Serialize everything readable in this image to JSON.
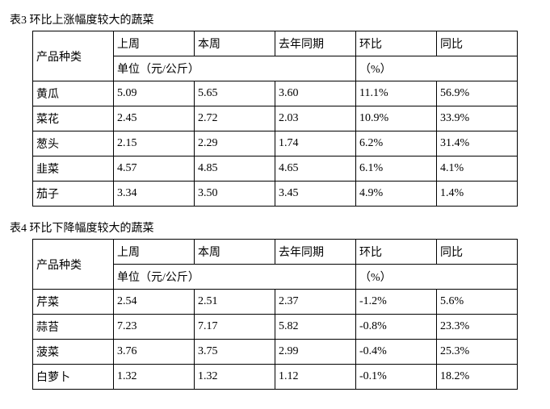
{
  "table3": {
    "caption": "表3 环比上涨幅度较大的蔬菜",
    "header": {
      "product": "产品种类",
      "last_week": "上周",
      "this_week": "本周",
      "last_year": "去年同期",
      "mom": "环比",
      "yoy": "同比",
      "unit_price": "单位（元/公斤）",
      "percent": "（%）"
    },
    "rows": [
      {
        "name": "黄瓜",
        "last_week": "5.09",
        "this_week": "5.65",
        "last_year": "3.60",
        "mom": "11.1%",
        "yoy": "56.9%"
      },
      {
        "name": "菜花",
        "last_week": "2.45",
        "this_week": "2.72",
        "last_year": "2.03",
        "mom": "10.9%",
        "yoy": "33.9%"
      },
      {
        "name": "葱头",
        "last_week": "2.15",
        "this_week": "2.29",
        "last_year": "1.74",
        "mom": "6.2%",
        "yoy": "31.4%"
      },
      {
        "name": "韭菜",
        "last_week": "4.57",
        "this_week": "4.85",
        "last_year": "4.65",
        "mom": "6.1%",
        "yoy": "4.1%"
      },
      {
        "name": "茄子",
        "last_week": "3.34",
        "this_week": "3.50",
        "last_year": "3.45",
        "mom": "4.9%",
        "yoy": "1.4%"
      }
    ]
  },
  "table4": {
    "caption": "表4 环比下降幅度较大的蔬菜",
    "header": {
      "product": "产品种类",
      "last_week": "上周",
      "this_week": "本周",
      "last_year": "去年同期",
      "mom": "环比",
      "yoy": "同比",
      "unit_price": "单位（元/公斤）",
      "percent": "（%）"
    },
    "rows": [
      {
        "name": "芹菜",
        "last_week": "2.54",
        "this_week": "2.51",
        "last_year": "2.37",
        "mom": "-1.2%",
        "yoy": "5.6%"
      },
      {
        "name": "蒜苔",
        "last_week": "7.23",
        "this_week": "7.17",
        "last_year": "5.82",
        "mom": "-0.8%",
        "yoy": "23.3%"
      },
      {
        "name": "菠菜",
        "last_week": "3.76",
        "this_week": "3.75",
        "last_year": "2.99",
        "mom": "-0.4%",
        "yoy": "25.3%"
      },
      {
        "name": "白萝卜",
        "last_week": "1.32",
        "this_week": "1.32",
        "last_year": "1.12",
        "mom": "-0.1%",
        "yoy": "18.2%"
      }
    ]
  }
}
